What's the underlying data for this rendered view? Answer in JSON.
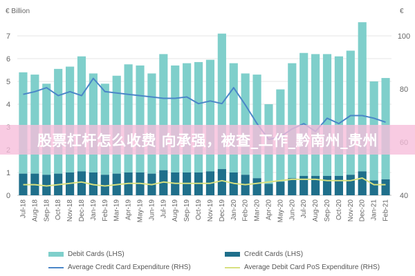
{
  "chart_data": {
    "type": "bar",
    "left_unit": "€ Billion",
    "right_unit": "€",
    "categories": [
      "Jul-18",
      "Aug-18",
      "Sep-18",
      "Oct-18",
      "Nov-18",
      "Dec-18",
      "Jan-19",
      "Feb-19",
      "Mar-19",
      "Apr-19",
      "May-19",
      "Jun-19",
      "Jul-19",
      "Aug-19",
      "Sep-19",
      "Oct-19",
      "Nov-19",
      "Dec-19",
      "Jan-20",
      "Feb-20",
      "Mar-20",
      "Apr-20",
      "May-20",
      "Jun-20",
      "Jul-20",
      "Aug-20",
      "Sep-20",
      "Oct-20",
      "Nov-20",
      "Dec-20",
      "Jan-21",
      "Feb-21"
    ],
    "x_tick_labels": [
      "Jul-18",
      "Aug-18",
      "Sep-18",
      "Oct-18",
      "Nov-18",
      "Dec-18",
      "Jan-19",
      "Feb-19",
      "Mar-19",
      "Apr-19",
      "May-19",
      "Jun-19",
      "Jul-19",
      "Aug-19",
      "Sep-19",
      "Oct-19",
      "Nov-19",
      "Dec-19",
      "Jan-20",
      "Feb-20",
      "Mar-20",
      "Apr-20",
      "May-20",
      "Jun-20",
      "Jul-20",
      "Aug-20",
      "Sep-20",
      "Oct-20",
      "Nov-20",
      "Dec-20",
      "Jan-21",
      "Feb-21"
    ],
    "ylim_left": [
      0,
      7
    ],
    "ylim_right": [
      40,
      100
    ],
    "yticks_left": [
      "0",
      "1",
      "2",
      "3",
      "4",
      "5",
      "6",
      "7"
    ],
    "yticks_right": [
      "40",
      "60",
      "80",
      "100"
    ],
    "series": [
      {
        "name": "Debit Cards (LHS)",
        "type": "bar",
        "axis": "left",
        "color": "#7fcfcb",
        "values": [
          4.45,
          4.35,
          4.0,
          4.6,
          4.65,
          5.05,
          4.35,
          4.0,
          4.3,
          4.75,
          4.7,
          4.4,
          5.1,
          4.7,
          4.8,
          4.85,
          4.9,
          5.95,
          4.8,
          4.45,
          4.55,
          3.5,
          4.05,
          5.05,
          5.4,
          5.35,
          5.35,
          5.25,
          5.45,
          6.55,
          4.35,
          4.45
        ]
      },
      {
        "name": "Credit Cards (LHS)",
        "type": "bar",
        "axis": "left",
        "color": "#1f6f8b",
        "values": [
          0.95,
          0.95,
          0.9,
          0.95,
          1.0,
          1.05,
          1.0,
          0.9,
          0.95,
          1.0,
          1.0,
          0.95,
          1.1,
          1.0,
          1.0,
          1.0,
          1.05,
          1.15,
          1.0,
          0.9,
          0.75,
          0.5,
          0.6,
          0.75,
          0.85,
          0.85,
          0.85,
          0.85,
          0.9,
          1.05,
          0.65,
          0.7
        ]
      },
      {
        "name": "Average Credit Card Expenditure (RHS)",
        "type": "line",
        "axis": "right",
        "color": "#4a86c8",
        "values": [
          78,
          79,
          80.5,
          77.5,
          79,
          77.5,
          84,
          79,
          78.5,
          78,
          77.5,
          77,
          76.5,
          76.5,
          77,
          74.5,
          75.5,
          74.5,
          80.5,
          74,
          67,
          61,
          62,
          65,
          67,
          64,
          69,
          67,
          70,
          70,
          69,
          67.5
        ]
      },
      {
        "name": "Average Debit Card PoS Expenditure (RHS)",
        "type": "line",
        "axis": "right",
        "color": "#d7e07f",
        "values": [
          44,
          44,
          43.5,
          44,
          44.5,
          45,
          44,
          43.5,
          44,
          44.5,
          44.5,
          44,
          45,
          44.5,
          44.5,
          44.5,
          44.5,
          45.5,
          44.5,
          44,
          44.5,
          45,
          45.5,
          46,
          46,
          46,
          45.5,
          45.5,
          45.5,
          46.5,
          44,
          44
        ]
      }
    ]
  },
  "overlay": {
    "text": "股票杠杆怎么收费 向承强，被查_工作_黔南州_贵州"
  }
}
